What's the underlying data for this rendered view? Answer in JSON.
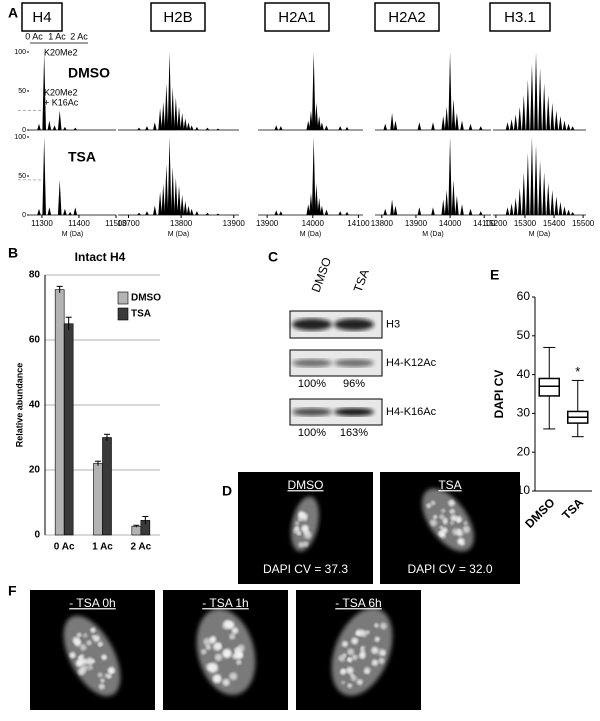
{
  "panel_labels": [
    "A",
    "B",
    "C",
    "D",
    "E",
    "F"
  ],
  "chart_data": [
    {
      "type": "spectrum",
      "title": "H4",
      "xlabel": "M (Da)",
      "xlim": [
        11265,
        11500
      ],
      "xticks": [
        11300,
        11400,
        11500
      ],
      "ylim": [
        0,
        100
      ],
      "yticks": [
        0,
        50,
        100
      ],
      "annotations": [
        "0 Ac",
        "1 Ac",
        "2 Ac",
        "K20Me2",
        "K20Me2",
        "+ K16Ac"
      ],
      "rows": [
        {
          "name": "DMSO",
          "ref": 25,
          "x": [
            11292,
            11306,
            11320,
            11334,
            11348,
            11362,
            11390
          ],
          "values": [
            8,
            100,
            12,
            6,
            25,
            4,
            3
          ]
        },
        {
          "name": "TSA",
          "ref": 45,
          "x": [
            11292,
            11306,
            11320,
            11348,
            11362,
            11376,
            11390
          ],
          "values": [
            8,
            100,
            10,
            45,
            8,
            4,
            10
          ]
        }
      ]
    },
    {
      "type": "spectrum",
      "title": "H2B",
      "xlabel": "M (Da)",
      "xlim": [
        13680,
        13910
      ],
      "xticks": [
        13700,
        13800,
        13900
      ],
      "ylim": [
        0,
        100
      ],
      "rows": [
        {
          "x": [
            13720,
            13735,
            13750,
            13760,
            13766,
            13772,
            13778,
            13784,
            13790,
            13796,
            13802,
            13808,
            13814,
            13820,
            13830,
            13850,
            13870
          ],
          "values": [
            3,
            5,
            10,
            28,
            36,
            60,
            100,
            55,
            42,
            30,
            22,
            15,
            10,
            6,
            4,
            3,
            2
          ]
        },
        {
          "x": [
            13720,
            13735,
            13750,
            13760,
            13766,
            13772,
            13778,
            13784,
            13790,
            13796,
            13802,
            13808,
            13814,
            13820,
            13830,
            13850,
            13870
          ],
          "values": [
            3,
            5,
            12,
            30,
            40,
            65,
            100,
            62,
            48,
            38,
            26,
            18,
            12,
            8,
            5,
            3,
            2
          ]
        }
      ]
    },
    {
      "type": "spectrum",
      "title": "H2A1",
      "xlabel": "M (Da)",
      "xlim": [
        13880,
        14110
      ],
      "xticks": [
        13900,
        14000,
        14100
      ],
      "ylim": [
        0,
        100
      ],
      "rows": [
        {
          "x": [
            13920,
            13930,
            13990,
            13996,
            14002,
            14008,
            14014,
            14020,
            14030,
            14060,
            14075
          ],
          "values": [
            6,
            5,
            12,
            25,
            100,
            35,
            18,
            10,
            6,
            5,
            4
          ]
        },
        {
          "x": [
            13920,
            13930,
            13990,
            13996,
            14002,
            14008,
            14014,
            14020,
            14030,
            14060,
            14075
          ],
          "values": [
            6,
            5,
            14,
            28,
            100,
            40,
            22,
            12,
            7,
            5,
            4
          ]
        }
      ]
    },
    {
      "type": "spectrum",
      "title": "H2A2",
      "xlabel": "M (Da)",
      "xlim": [
        13780,
        14120
      ],
      "xticks": [
        13800,
        13900,
        14000,
        14100
      ],
      "ylim": [
        0,
        100
      ],
      "rows": [
        {
          "x": [
            13810,
            13830,
            13840,
            13910,
            13950,
            13980,
            13990,
            14000,
            14010,
            14020,
            14035,
            14060,
            14090
          ],
          "values": [
            8,
            22,
            12,
            10,
            10,
            18,
            30,
            100,
            40,
            22,
            12,
            8,
            5
          ]
        },
        {
          "x": [
            13810,
            13830,
            13840,
            13910,
            13950,
            13980,
            13990,
            14000,
            14010,
            14020,
            14035,
            14060,
            14090
          ],
          "values": [
            8,
            20,
            12,
            10,
            10,
            20,
            32,
            100,
            45,
            25,
            14,
            8,
            5
          ]
        }
      ]
    },
    {
      "type": "spectrum",
      "title": "H3.1",
      "xlabel": "M (Da)",
      "xlim": [
        15190,
        15510
      ],
      "xticks": [
        15200,
        15300,
        15400,
        15500
      ],
      "ylim": [
        0,
        100
      ],
      "rows": [
        {
          "x": [
            15240,
            15254,
            15268,
            15282,
            15296,
            15310,
            15324,
            15338,
            15352,
            15366,
            15380,
            15394,
            15408,
            15422,
            15436,
            15450,
            15464
          ],
          "values": [
            10,
            14,
            20,
            30,
            45,
            65,
            85,
            100,
            80,
            60,
            45,
            35,
            25,
            18,
            12,
            8,
            5
          ]
        },
        {
          "x": [
            15240,
            15254,
            15268,
            15282,
            15296,
            15310,
            15324,
            15338,
            15352,
            15366,
            15380,
            15394,
            15408,
            15422,
            15436,
            15450,
            15464
          ],
          "values": [
            10,
            15,
            22,
            35,
            55,
            80,
            100,
            90,
            70,
            55,
            42,
            32,
            24,
            17,
            11,
            7,
            4
          ]
        }
      ]
    },
    {
      "type": "bar",
      "title": "Intact H4",
      "ylabel": "Relative abundance",
      "categories": [
        "0 Ac",
        "1 Ac",
        "2 Ac"
      ],
      "series": [
        {
          "name": "DMSO",
          "color": "#b3b3b3",
          "values": [
            75.5,
            22,
            2.7
          ],
          "errors": [
            1,
            0.7,
            0.3
          ]
        },
        {
          "name": "TSA",
          "color": "#3a3a3a",
          "values": [
            65,
            30,
            4.5
          ],
          "errors": [
            2,
            1,
            1.2
          ]
        }
      ],
      "ylim": [
        0,
        80
      ],
      "yticks": [
        0,
        20,
        40,
        60,
        80
      ],
      "grid": true,
      "legend": "upper right"
    },
    {
      "type": "box",
      "ylabel": "DAPI CV",
      "categories": [
        "DMSO",
        "TSA"
      ],
      "boxes": [
        {
          "min": 26,
          "q1": 34.5,
          "median": 37,
          "q3": 39,
          "max": 47
        },
        {
          "min": 24,
          "q1": 27.5,
          "median": 29,
          "q3": 30.5,
          "max": 38.5
        }
      ],
      "annotations": [
        "*"
      ],
      "ylim": [
        10,
        60
      ],
      "yticks": [
        10,
        20,
        30,
        40,
        50,
        60
      ]
    }
  ],
  "western_blot": {
    "lanes": [
      "DMSO",
      "TSA"
    ],
    "rows": [
      {
        "label": "H3"
      },
      {
        "label": "H4-K12Ac",
        "quant": [
          "100%",
          "96%"
        ]
      },
      {
        "label": "H4-K16Ac",
        "quant": [
          "100%",
          "163%"
        ]
      }
    ]
  },
  "nuclei_d": [
    {
      "label": "DMSO",
      "caption": "DAPI CV = 37.3"
    },
    {
      "label": "TSA",
      "caption": "DAPI CV = 32.0"
    }
  ],
  "nuclei_f": [
    "- TSA 0h",
    "- TSA 1h",
    "- TSA 6h"
  ]
}
